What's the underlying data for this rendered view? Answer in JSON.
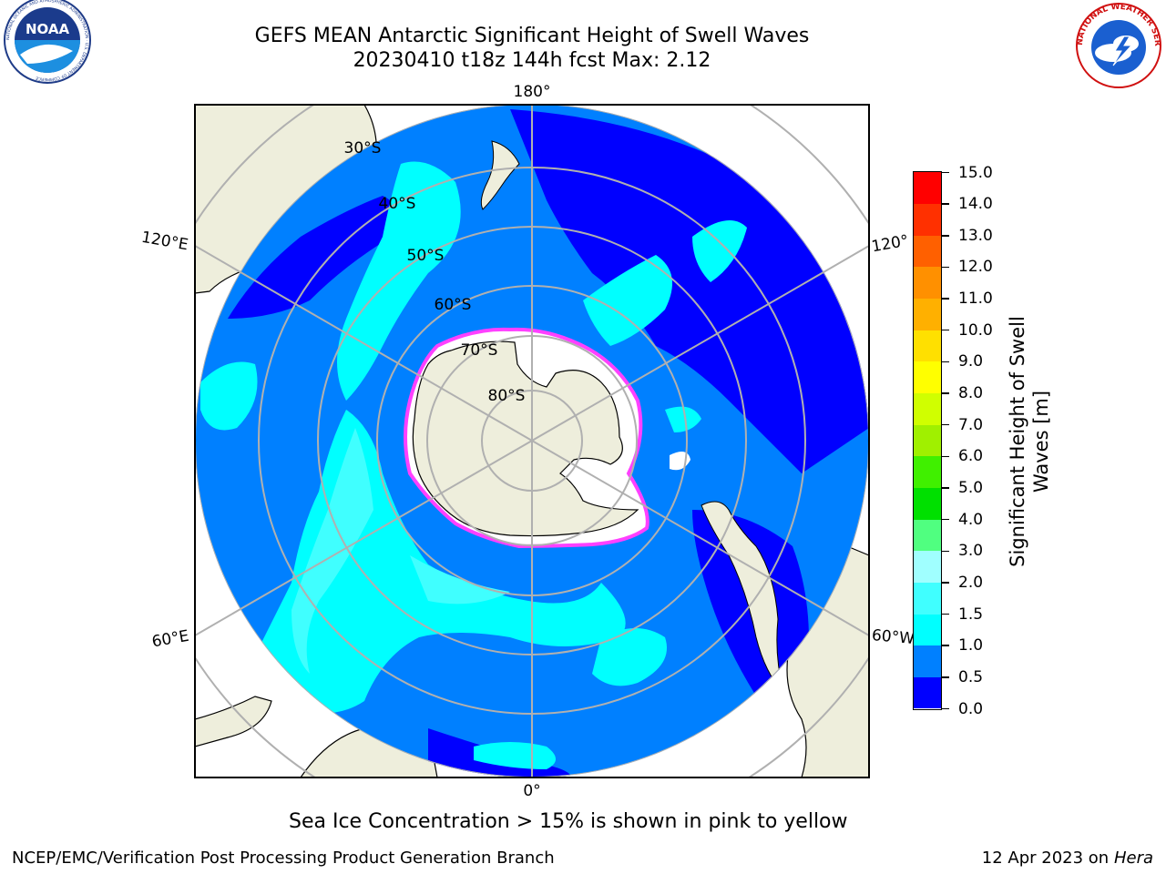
{
  "header": {
    "title_line1": "GEFS MEAN Antarctic Significant Height of Swell Waves",
    "title_line2": "20230410 t18z 144h fcst   Max: 2.12"
  },
  "logos": {
    "noaa_text": "NOAA",
    "noaa_ring_text": "NATIONAL OCEANIC AND ATMOSPHERIC ADMINISTRATION · U.S. DEPARTMENT OF COMMERCE",
    "nws_ring_text": "NATIONAL WEATHER SERVICE"
  },
  "map": {
    "projection": "south-polar-stereographic",
    "longitude_labels": [
      "180°",
      "120°E",
      "120°",
      "60°E",
      "60°W",
      "0°"
    ],
    "latitude_labels": [
      "30°S",
      "40°S",
      "50°S",
      "60°S",
      "70°S",
      "80°S"
    ],
    "colors": {
      "ocean_low": "#0000ff",
      "ocean_05": "#0080ff",
      "ocean_10": "#00ffff",
      "ocean_15": "#40ffff",
      "land": "#eeeedc",
      "sea_ice": "#ffffff",
      "ice_edge": "#ff40ff",
      "grid": "#b0b0b0"
    }
  },
  "colorbar": {
    "label": "Significant Height of Swell Waves [m]",
    "ticks": [
      "0.0",
      "0.5",
      "1.0",
      "1.5",
      "2.0",
      "3.0",
      "4.0",
      "5.0",
      "6.0",
      "7.0",
      "8.0",
      "9.0",
      "10.0",
      "11.0",
      "12.0",
      "13.0",
      "14.0",
      "15.0"
    ],
    "colors": [
      "#0000ff",
      "#0080ff",
      "#00ffff",
      "#40ffff",
      "#a0ffff",
      "#50ff80",
      "#00e000",
      "#40f000",
      "#a0f000",
      "#d0ff00",
      "#ffff00",
      "#ffe000",
      "#ffb000",
      "#ff9000",
      "#ff6000",
      "#ff3000",
      "#ff0000"
    ]
  },
  "caption": "Sea Ice Concentration > 15% is shown in pink to yellow",
  "footer": {
    "left": "NCEP/EMC/Verification Post Processing Product Generation Branch",
    "right_date": "12 Apr 2023 on ",
    "right_machine": "Hera"
  }
}
